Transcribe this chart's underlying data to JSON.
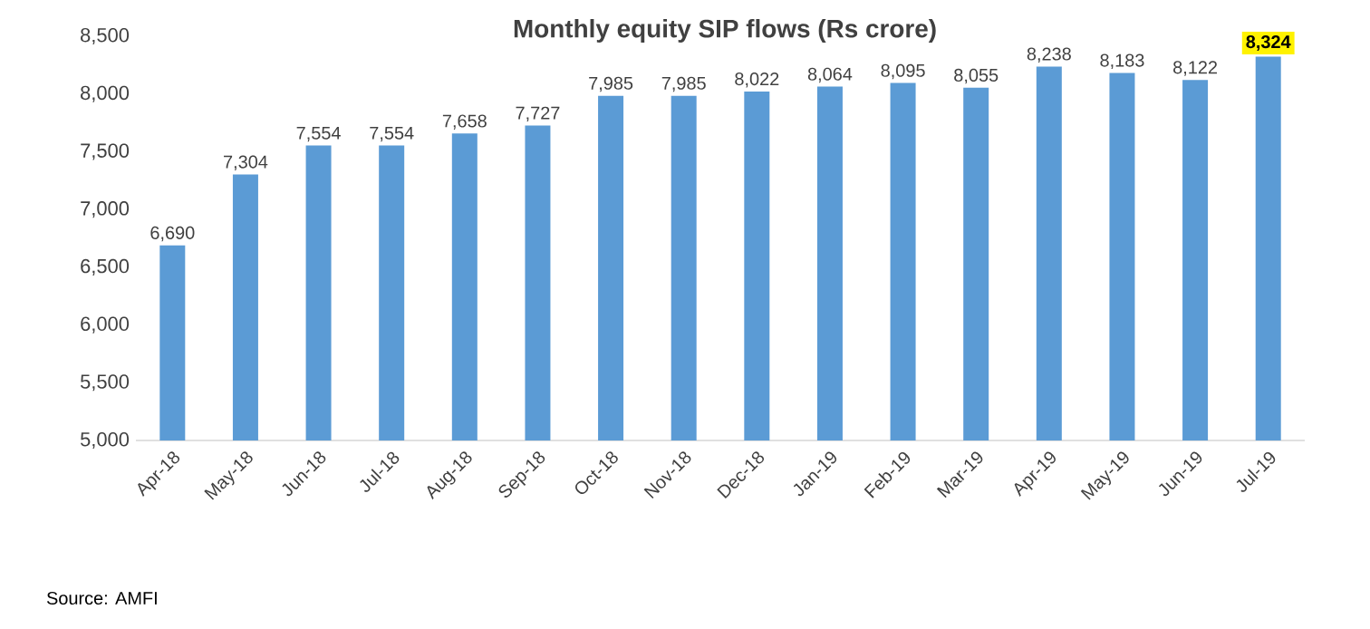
{
  "chart_data": {
    "type": "bar",
    "title": "Monthly equity SIP flows (Rs crore)",
    "categories": [
      "Apr-18",
      "May-18",
      "Jun-18",
      "Jul-18",
      "Aug-18",
      "Sep-18",
      "Oct-18",
      "Nov-18",
      "Dec-18",
      "Jan-19",
      "Feb-19",
      "Mar-19",
      "Apr-19",
      "May-19",
      "Jun-19",
      "Jul-19"
    ],
    "values": [
      6690,
      7304,
      7554,
      7554,
      7658,
      7727,
      7985,
      7985,
      8022,
      8064,
      8095,
      8055,
      8238,
      8183,
      8122,
      8324
    ],
    "value_labels": [
      "6,690",
      "7,304",
      "7,554",
      "7,554",
      "7,658",
      "7,727",
      "7,985",
      "7,985",
      "8,022",
      "8,064",
      "8,095",
      "8,055",
      "8,238",
      "8,183",
      "8,122",
      null
    ],
    "color": "#5b9bd5",
    "ylim": [
      5000,
      8500
    ],
    "yticks": [
      {
        "value": 5000,
        "label": "5,000"
      },
      {
        "value": 5500,
        "label": "5,500"
      },
      {
        "value": 6000,
        "label": "6,000"
      },
      {
        "value": 6500,
        "label": "6,500"
      },
      {
        "value": 7000,
        "label": "7,000"
      },
      {
        "value": 7500,
        "label": "7,500"
      },
      {
        "value": 8000,
        "label": "8,000"
      },
      {
        "value": 8500,
        "label": "8,500"
      }
    ],
    "annotations": [
      {
        "text": "8,324",
        "x": "Jul-19",
        "y": 8324
      },
      "Source: AMFI"
    ],
    "grid": false
  }
}
